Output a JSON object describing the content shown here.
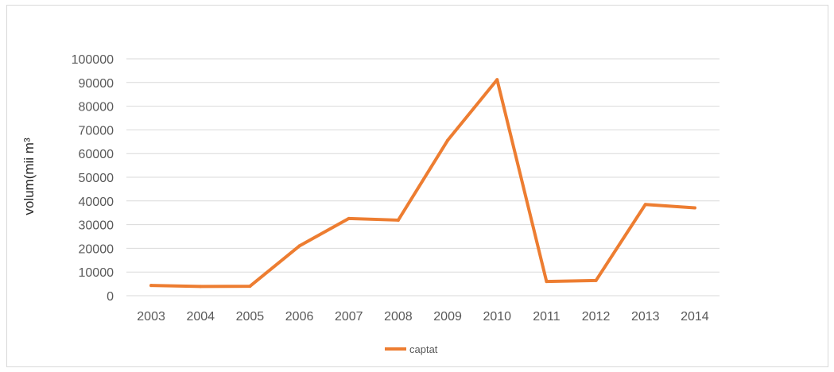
{
  "chart_data": {
    "type": "line",
    "categories": [
      "2003",
      "2004",
      "2005",
      "2006",
      "2007",
      "2008",
      "2009",
      "2010",
      "2011",
      "2012",
      "2013",
      "2014"
    ],
    "series": [
      {
        "name": "captat",
        "values": [
          4300,
          3900,
          4000,
          21000,
          32600,
          31900,
          65600,
          91200,
          6000,
          6400,
          38500,
          37100
        ]
      }
    ],
    "ylabel": "volum(mii m³",
    "ylim": [
      0,
      100000
    ],
    "yticks": [
      0,
      10000,
      20000,
      30000,
      40000,
      50000,
      60000,
      70000,
      80000,
      90000,
      100000
    ],
    "grid": true,
    "legend": "bottom",
    "colors": {
      "series": "#ED7D31",
      "grid": "#d9d9d9",
      "text": "#595959"
    }
  }
}
